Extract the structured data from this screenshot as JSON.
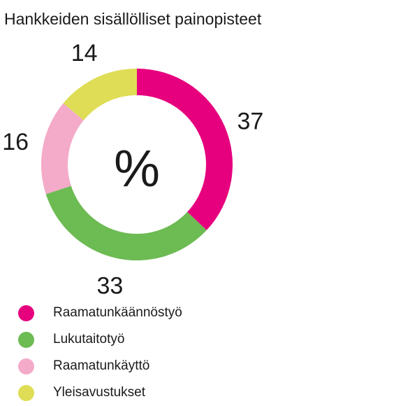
{
  "title": "Hankkeiden sisällölliset painopisteet",
  "center_label": "%",
  "chart_data": {
    "type": "pie",
    "title": "Hankkeiden sisällölliset painopisteet",
    "unit": "%",
    "donut": true,
    "legend_position": "bottom-left",
    "categories": [
      "Raamatunkäännöstyö",
      "Lukutaitotyö",
      "Raamatunkäyttö",
      "Yleisavustukset"
    ],
    "values": [
      37,
      33,
      16,
      14
    ],
    "colors": [
      "#e6007e",
      "#6dbb53",
      "#f4aac9",
      "#dedd55"
    ]
  }
}
